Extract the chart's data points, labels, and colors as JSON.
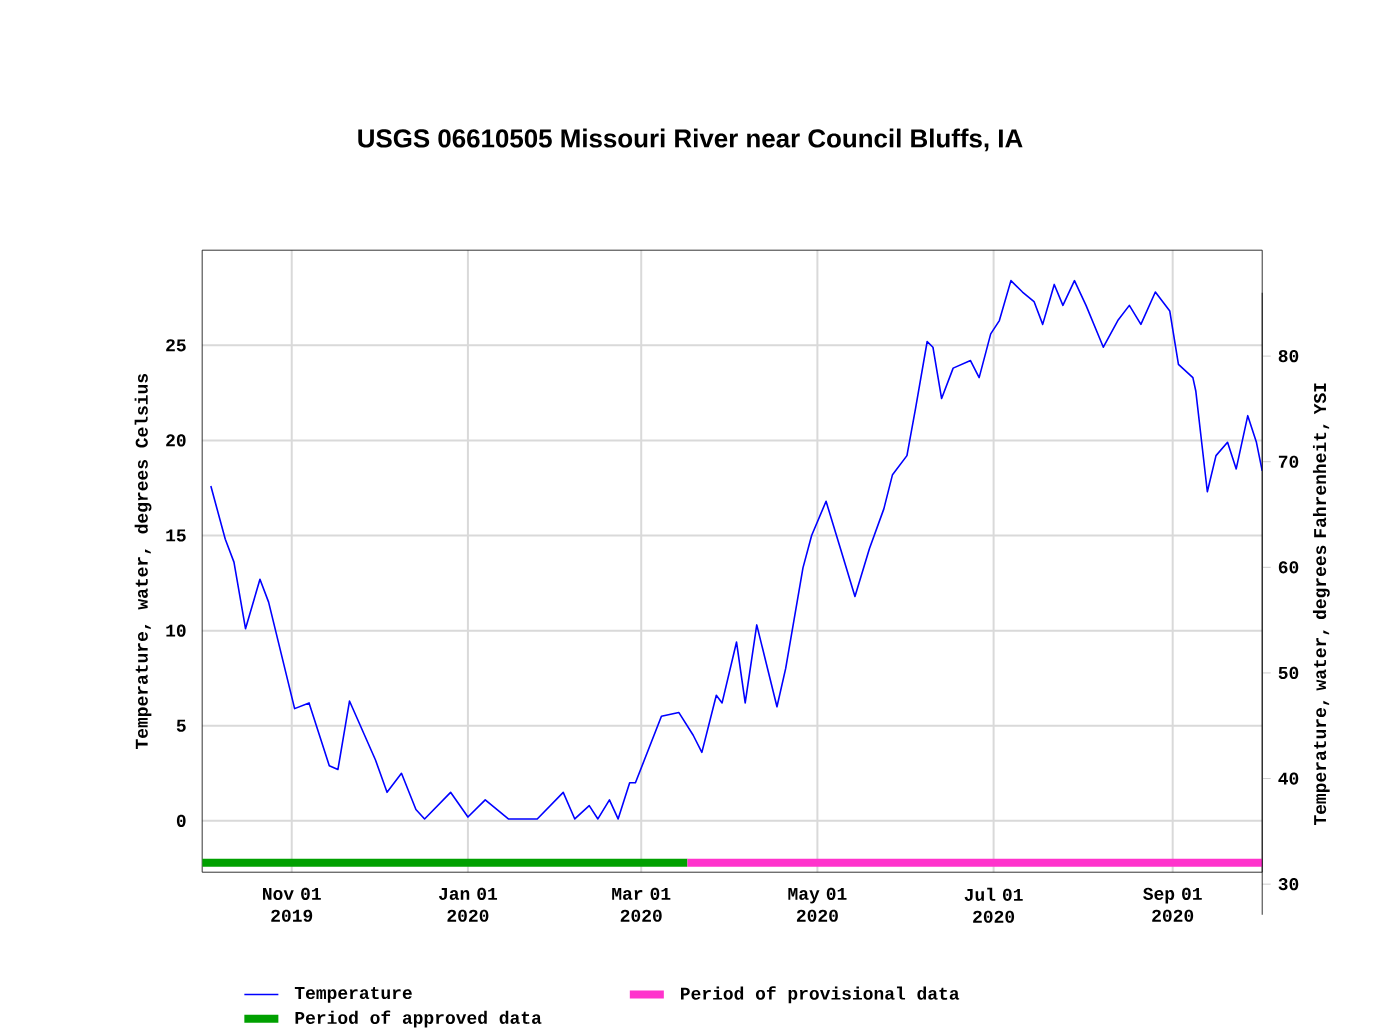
{
  "chart_data": {
    "type": "line",
    "title": "USGS 06610505 Missouri River near Council Bluffs, IA",
    "ylabel": "Temperature, water, degrees Celsius",
    "y2label": "Temperature, water, degrees Fahrenheit, YSI",
    "xlim": [
      "2019-10-01",
      "2020-10-02"
    ],
    "xticks": [
      {
        "value": "2019-11-01",
        "label": "Nov 01 2019"
      },
      {
        "value": "2020-01-01",
        "label": "Jan 01 2020"
      },
      {
        "value": "2020-03-01",
        "label": "Mar 01 2020"
      },
      {
        "value": "2020-05-01",
        "label": "May 01 2020"
      },
      {
        "value": "2020-07-01",
        "label": "Jul 01 2020"
      },
      {
        "value": "2020-09-01",
        "label": "Sep 01 2020"
      }
    ],
    "ylim": [
      -2.7,
      30
    ],
    "yticks": [
      0,
      5,
      10,
      15,
      20,
      25
    ],
    "y2lim": [
      27.1,
      86
    ],
    "y2ticks": [
      30,
      40,
      50,
      60,
      70,
      80
    ],
    "grid": true,
    "legend": "bottom",
    "series": [
      {
        "name": "Temperature",
        "color": "#0000ff",
        "x": [
          "2019-10-04",
          "2019-10-09",
          "2019-10-12",
          "2019-10-16",
          "2019-10-21",
          "2019-10-24",
          "2019-11-02",
          "2019-11-07",
          "2019-11-14",
          "2019-11-17",
          "2019-11-21",
          "2019-11-30",
          "2019-12-04",
          "2019-12-09",
          "2019-12-14",
          "2019-12-17",
          "2019-12-26",
          "2020-01-01",
          "2020-01-07",
          "2020-01-15",
          "2020-01-25",
          "2020-02-03",
          "2020-02-07",
          "2020-02-12",
          "2020-02-15",
          "2020-02-19",
          "2020-02-22",
          "2020-02-26",
          "2020-02-28",
          "2020-03-08",
          "2020-03-14",
          "2020-03-19",
          "2020-03-22",
          "2020-03-27",
          "2020-03-29",
          "2020-04-03",
          "2020-04-06",
          "2020-04-10",
          "2020-04-17",
          "2020-04-20",
          "2020-04-26",
          "2020-04-29",
          "2020-05-04",
          "2020-05-09",
          "2020-05-14",
          "2020-05-19",
          "2020-05-24",
          "2020-05-27",
          "2020-06-01",
          "2020-06-04",
          "2020-06-08",
          "2020-06-10",
          "2020-06-13",
          "2020-06-17",
          "2020-06-23",
          "2020-06-26",
          "2020-06-30",
          "2020-07-03",
          "2020-07-07",
          "2020-07-11",
          "2020-07-15",
          "2020-07-18",
          "2020-07-22",
          "2020-07-25",
          "2020-07-29",
          "2020-08-02",
          "2020-08-08",
          "2020-08-13",
          "2020-08-17",
          "2020-08-21",
          "2020-08-26",
          "2020-08-31",
          "2020-09-03",
          "2020-09-08",
          "2020-09-09",
          "2020-09-13",
          "2020-09-16",
          "2020-09-20",
          "2020-09-23",
          "2020-09-27",
          "2020-09-30",
          "2020-10-02"
        ],
        "values": [
          17.6,
          14.8,
          13.6,
          10.1,
          12.7,
          11.5,
          5.9,
          6.2,
          2.9,
          2.7,
          6.3,
          3.2,
          1.5,
          2.5,
          0.6,
          0.1,
          1.5,
          0.2,
          1.1,
          0.1,
          0.1,
          1.5,
          0.1,
          0.8,
          0.1,
          1.1,
          0.1,
          2.0,
          2.0,
          5.5,
          5.7,
          4.5,
          3.6,
          6.6,
          6.2,
          9.4,
          6.2,
          10.3,
          6.0,
          8.0,
          13.3,
          15.0,
          16.8,
          14.3,
          11.8,
          14.3,
          16.4,
          18.2,
          19.2,
          21.7,
          25.2,
          24.9,
          22.2,
          23.8,
          24.2,
          23.3,
          25.6,
          26.3,
          28.4,
          27.8,
          27.3,
          26.1,
          28.2,
          27.1,
          28.4,
          27.1,
          24.9,
          26.3,
          27.1,
          26.1,
          27.8,
          26.8,
          24.0,
          23.3,
          22.6,
          17.3,
          19.2,
          19.9,
          18.5,
          21.3,
          19.9,
          18.4
        ]
      },
      {
        "name": "Period of approved data",
        "color": "#00a000",
        "x": [
          "2019-10-01",
          "2020-03-17"
        ],
        "values": [
          -2.2,
          -2.2
        ]
      },
      {
        "name": "Period of provisional data",
        "color": "#ff33cc",
        "x": [
          "2020-03-17",
          "2020-10-02"
        ],
        "values": [
          -2.2,
          -2.2
        ]
      }
    ]
  }
}
